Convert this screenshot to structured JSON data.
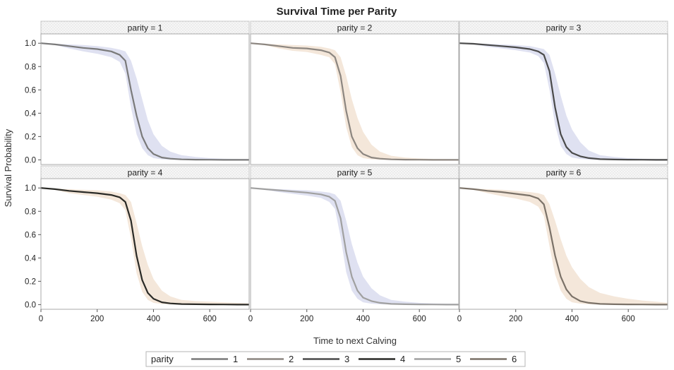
{
  "chart_data": {
    "type": "line",
    "title": "Survival Time per Parity",
    "xlabel": "Time to next Calving",
    "ylabel": "Survival Probability",
    "xlim": [
      0,
      740
    ],
    "ylim": [
      -0.04,
      1.08
    ],
    "xticks": [
      0,
      200,
      400,
      600
    ],
    "yticks": [
      0.0,
      0.2,
      0.4,
      0.6,
      0.8,
      1.0
    ],
    "x": [
      0,
      50,
      100,
      150,
      200,
      250,
      280,
      300,
      320,
      340,
      360,
      380,
      400,
      430,
      460,
      500,
      550,
      600,
      650,
      700,
      740
    ],
    "legend": {
      "title": "parity",
      "placement": "bottom"
    },
    "panels": [
      {
        "label": "parity = 1",
        "series": "1",
        "color": "#7a7a7a",
        "band_color": "#d9dcef",
        "values": [
          1.0,
          0.99,
          0.975,
          0.96,
          0.95,
          0.93,
          0.9,
          0.85,
          0.6,
          0.38,
          0.2,
          0.1,
          0.05,
          0.02,
          0.01,
          0.004,
          0.002,
          0.001,
          0.0,
          0.0,
          0.0
        ],
        "upper": [
          1.0,
          0.995,
          0.99,
          0.985,
          0.975,
          0.96,
          0.945,
          0.93,
          0.85,
          0.7,
          0.52,
          0.34,
          0.22,
          0.12,
          0.07,
          0.04,
          0.025,
          0.015,
          0.01,
          0.008,
          0.006
        ],
        "lower": [
          1.0,
          0.985,
          0.955,
          0.93,
          0.91,
          0.88,
          0.84,
          0.74,
          0.45,
          0.22,
          0.1,
          0.04,
          0.015,
          0.005,
          0.002,
          0.0,
          0.0,
          0.0,
          0.0,
          0.0,
          0.0
        ]
      },
      {
        "label": "parity = 2",
        "series": "2",
        "color": "#8c8680",
        "band_color": "#f2e3d3",
        "values": [
          1.0,
          0.99,
          0.975,
          0.96,
          0.955,
          0.94,
          0.92,
          0.88,
          0.72,
          0.42,
          0.2,
          0.1,
          0.05,
          0.02,
          0.01,
          0.004,
          0.002,
          0.001,
          0.0,
          0.0,
          0.0
        ],
        "upper": [
          1.0,
          0.995,
          0.99,
          0.985,
          0.98,
          0.97,
          0.955,
          0.94,
          0.88,
          0.72,
          0.52,
          0.36,
          0.24,
          0.13,
          0.07,
          0.035,
          0.02,
          0.012,
          0.008,
          0.006,
          0.005
        ],
        "lower": [
          1.0,
          0.985,
          0.955,
          0.935,
          0.925,
          0.9,
          0.88,
          0.82,
          0.58,
          0.28,
          0.11,
          0.04,
          0.015,
          0.005,
          0.002,
          0.0,
          0.0,
          0.0,
          0.0,
          0.0,
          0.0
        ]
      },
      {
        "label": "parity = 3",
        "series": "3",
        "color": "#4a4a4a",
        "band_color": "#d9dcef",
        "values": [
          1.0,
          0.995,
          0.985,
          0.975,
          0.965,
          0.95,
          0.93,
          0.9,
          0.76,
          0.45,
          0.22,
          0.11,
          0.06,
          0.03,
          0.015,
          0.006,
          0.003,
          0.002,
          0.001,
          0.0,
          0.0
        ],
        "upper": [
          1.0,
          0.998,
          0.995,
          0.99,
          0.985,
          0.975,
          0.96,
          0.95,
          0.9,
          0.74,
          0.55,
          0.38,
          0.26,
          0.15,
          0.08,
          0.04,
          0.025,
          0.015,
          0.01,
          0.008,
          0.006
        ],
        "lower": [
          1.0,
          0.99,
          0.97,
          0.955,
          0.94,
          0.92,
          0.89,
          0.83,
          0.6,
          0.3,
          0.12,
          0.05,
          0.02,
          0.008,
          0.003,
          0.001,
          0.0,
          0.0,
          0.0,
          0.0,
          0.0
        ]
      },
      {
        "label": "parity = 4",
        "series": "4",
        "color": "#2a2a26",
        "band_color": "#f2e3d3",
        "values": [
          1.0,
          0.99,
          0.975,
          0.965,
          0.955,
          0.94,
          0.92,
          0.88,
          0.72,
          0.42,
          0.21,
          0.1,
          0.05,
          0.02,
          0.01,
          0.005,
          0.003,
          0.002,
          0.001,
          0.0,
          0.0
        ],
        "upper": [
          1.0,
          0.995,
          0.99,
          0.985,
          0.98,
          0.97,
          0.955,
          0.94,
          0.88,
          0.7,
          0.5,
          0.34,
          0.22,
          0.12,
          0.07,
          0.04,
          0.03,
          0.025,
          0.02,
          0.015,
          0.01
        ],
        "lower": [
          1.0,
          0.985,
          0.955,
          0.94,
          0.925,
          0.9,
          0.87,
          0.81,
          0.57,
          0.27,
          0.11,
          0.04,
          0.015,
          0.005,
          0.002,
          0.0,
          0.0,
          0.0,
          0.0,
          0.0,
          0.0
        ]
      },
      {
        "label": "parity = 5",
        "series": "5",
        "color": "#a0a0a0",
        "band_color": "#d9dcef",
        "values": [
          1.0,
          0.99,
          0.98,
          0.97,
          0.96,
          0.945,
          0.925,
          0.89,
          0.74,
          0.45,
          0.24,
          0.12,
          0.06,
          0.03,
          0.015,
          0.006,
          0.003,
          0.002,
          0.001,
          0.0,
          0.0
        ],
        "upper": [
          1.0,
          0.995,
          0.99,
          0.985,
          0.98,
          0.97,
          0.96,
          0.945,
          0.89,
          0.72,
          0.52,
          0.36,
          0.24,
          0.14,
          0.08,
          0.04,
          0.025,
          0.015,
          0.01,
          0.008,
          0.006
        ],
        "lower": [
          1.0,
          0.985,
          0.965,
          0.95,
          0.935,
          0.915,
          0.88,
          0.82,
          0.58,
          0.28,
          0.12,
          0.05,
          0.02,
          0.008,
          0.003,
          0.001,
          0.0,
          0.0,
          0.0,
          0.0,
          0.0
        ]
      },
      {
        "label": "parity = 6",
        "series": "6",
        "color": "#7b7268",
        "band_color": "#f2e3d3",
        "values": [
          1.0,
          0.99,
          0.975,
          0.965,
          0.95,
          0.935,
          0.91,
          0.86,
          0.66,
          0.42,
          0.24,
          0.13,
          0.07,
          0.03,
          0.015,
          0.006,
          0.003,
          0.002,
          0.001,
          0.0,
          0.0
        ],
        "upper": [
          1.0,
          0.995,
          0.99,
          0.985,
          0.975,
          0.965,
          0.955,
          0.94,
          0.86,
          0.72,
          0.56,
          0.42,
          0.32,
          0.22,
          0.15,
          0.1,
          0.07,
          0.05,
          0.035,
          0.025,
          0.015
        ],
        "lower": [
          1.0,
          0.985,
          0.955,
          0.93,
          0.91,
          0.88,
          0.84,
          0.76,
          0.5,
          0.26,
          0.12,
          0.05,
          0.02,
          0.008,
          0.003,
          0.001,
          0.0,
          0.0,
          0.0,
          0.0,
          0.0
        ]
      }
    ]
  }
}
